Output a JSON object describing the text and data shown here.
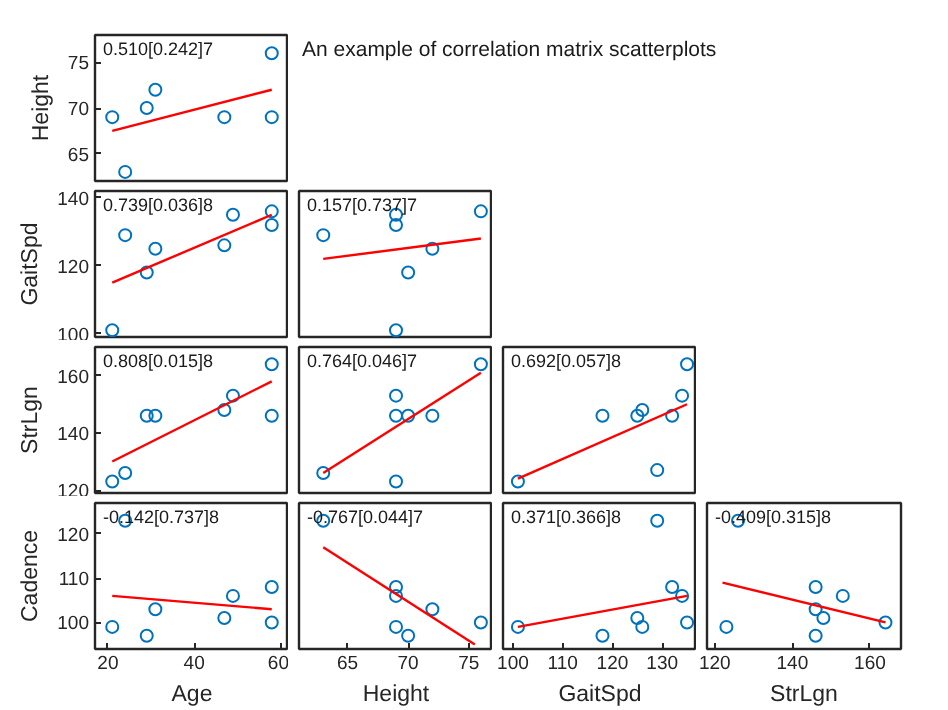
{
  "chart_data": [
    {
      "type": "scatter",
      "ylabel": "Height",
      "xlim": [
        17,
        62
      ],
      "ylim": [
        62,
        78
      ],
      "xticks": [
        20,
        40,
        60
      ],
      "yticks": [
        65,
        70,
        75
      ],
      "tick_labels": "y",
      "grid": false,
      "annotations": [
        "0.510[0.242]7",
        "An example of correlation matrix scatterplots"
      ],
      "series": [
        {
          "marker": "circle",
          "color": "#0072bd",
          "x": [
            21,
            24,
            29,
            31,
            47,
            58,
            58
          ],
          "values": [
            69,
            63,
            70,
            72,
            69,
            76,
            69
          ]
        },
        {
          "type": "line",
          "marker": "none",
          "color": "#ff0000",
          "x": [
            21,
            58
          ],
          "values": [
            67.5,
            72
          ]
        }
      ]
    },
    {
      "type": "scatter",
      "ylabel": "GaitSpd",
      "xlim": [
        17,
        62
      ],
      "ylim": [
        99,
        142
      ],
      "xticks": [
        20,
        40,
        60
      ],
      "yticks": [
        100,
        120,
        140
      ],
      "tick_labels": "y",
      "grid": false,
      "annotations": [
        "0.739[0.036]8"
      ],
      "series": [
        {
          "marker": "circle",
          "color": "#0072bd",
          "x": [
            21,
            24,
            29,
            31,
            47,
            49,
            58,
            58
          ],
          "values": [
            101,
            129,
            118,
            125,
            126,
            135,
            136,
            132
          ]
        },
        {
          "type": "line",
          "marker": "none",
          "color": "#ff0000",
          "x": [
            21,
            58
          ],
          "values": [
            115,
            135
          ]
        }
      ]
    },
    {
      "type": "scatter",
      "xlim": [
        61,
        77
      ],
      "ylim": [
        99,
        142
      ],
      "xticks": [
        65,
        70,
        75
      ],
      "yticks": [
        100,
        120,
        140
      ],
      "tick_labels": false,
      "grid": false,
      "annotations": [
        "0.157[0.737]7"
      ],
      "series": [
        {
          "marker": "circle",
          "color": "#0072bd",
          "x": [
            63,
            69,
            69,
            69,
            70,
            72,
            76
          ],
          "values": [
            129,
            135,
            132,
            101,
            118,
            125,
            136
          ]
        },
        {
          "type": "line",
          "marker": "none",
          "color": "#ff0000",
          "x": [
            63,
            76
          ],
          "values": [
            122,
            128
          ]
        }
      ]
    },
    {
      "type": "scatter",
      "ylabel": "StrLgn",
      "xlim": [
        17,
        62
      ],
      "ylim": [
        119,
        170
      ],
      "xticks": [
        20,
        40,
        60
      ],
      "yticks": [
        120,
        140,
        160
      ],
      "tick_labels": "y",
      "grid": false,
      "annotations": [
        "0.808[0.015]8"
      ],
      "series": [
        {
          "marker": "circle",
          "color": "#0072bd",
          "x": [
            21,
            24,
            29,
            31,
            47,
            49,
            58,
            58
          ],
          "values": [
            123,
            126,
            146,
            146,
            148,
            153,
            164,
            146
          ]
        },
        {
          "type": "line",
          "marker": "none",
          "color": "#ff0000",
          "x": [
            21,
            58
          ],
          "values": [
            130,
            158
          ]
        }
      ]
    },
    {
      "type": "scatter",
      "xlim": [
        61,
        77
      ],
      "ylim": [
        119,
        170
      ],
      "xticks": [
        65,
        70,
        75
      ],
      "yticks": [
        120,
        140,
        160
      ],
      "tick_labels": false,
      "grid": false,
      "annotations": [
        "0.764[0.046]7"
      ],
      "series": [
        {
          "marker": "circle",
          "color": "#0072bd",
          "x": [
            63,
            69,
            69,
            69,
            70,
            72,
            76
          ],
          "values": [
            126,
            153,
            146,
            123,
            146,
            146,
            164
          ]
        },
        {
          "type": "line",
          "marker": "none",
          "color": "#ff0000",
          "x": [
            63,
            76
          ],
          "values": [
            126,
            161
          ]
        }
      ]
    },
    {
      "type": "scatter",
      "xlim": [
        98,
        137
      ],
      "ylim": [
        119,
        170
      ],
      "xticks": [
        100,
        110,
        120,
        130
      ],
      "yticks": [
        120,
        140,
        160
      ],
      "tick_labels": false,
      "grid": false,
      "annotations": [
        "0.692[0.057]8"
      ],
      "series": [
        {
          "marker": "circle",
          "color": "#0072bd",
          "x": [
            101,
            118,
            125,
            126,
            129,
            132,
            134,
            135
          ],
          "values": [
            123,
            146,
            146,
            148,
            127,
            146,
            153,
            164
          ]
        },
        {
          "type": "line",
          "marker": "none",
          "color": "#ff0000",
          "x": [
            101,
            135
          ],
          "values": [
            124,
            150
          ]
        }
      ]
    },
    {
      "type": "scatter",
      "xlabel": "Age",
      "ylabel": "Cadence",
      "xlim": [
        17,
        62
      ],
      "ylim": [
        94,
        127
      ],
      "xticks": [
        20,
        40,
        60
      ],
      "yticks": [
        100,
        110,
        120
      ],
      "grid": false,
      "annotations": [
        "-0.142[0.737]8"
      ],
      "series": [
        {
          "marker": "circle",
          "color": "#0072bd",
          "x": [
            21,
            24,
            29,
            31,
            47,
            49,
            58,
            58
          ],
          "values": [
            99,
            123,
            97,
            103,
            101,
            106,
            108,
            100
          ]
        },
        {
          "type": "line",
          "marker": "none",
          "color": "#ff0000",
          "x": [
            21,
            58
          ],
          "values": [
            106,
            103
          ]
        }
      ]
    },
    {
      "type": "scatter",
      "xlabel": "Height",
      "xlim": [
        61,
        77
      ],
      "ylim": [
        94,
        127
      ],
      "xticks": [
        65,
        70,
        75
      ],
      "yticks": [
        100,
        110,
        120
      ],
      "tick_labels": "x",
      "grid": false,
      "annotations": [
        "-0.767[0.044]7"
      ],
      "series": [
        {
          "marker": "circle",
          "color": "#0072bd",
          "x": [
            63,
            69,
            69,
            69,
            70,
            72,
            76
          ],
          "values": [
            123,
            108,
            106,
            99,
            97,
            103,
            100
          ]
        },
        {
          "type": "line",
          "marker": "none",
          "color": "#ff0000",
          "x": [
            63,
            75.5
          ],
          "values": [
            117,
            95
          ]
        }
      ]
    },
    {
      "type": "scatter",
      "xlabel": "GaitSpd",
      "xlim": [
        98,
        137
      ],
      "ylim": [
        94,
        127
      ],
      "xticks": [
        100,
        110,
        120,
        130
      ],
      "yticks": [
        100,
        110,
        120
      ],
      "tick_labels": "x",
      "grid": false,
      "annotations": [
        "0.371[0.366]8"
      ],
      "series": [
        {
          "marker": "circle",
          "color": "#0072bd",
          "x": [
            101,
            118,
            125,
            126,
            129,
            132,
            134,
            135
          ],
          "values": [
            99,
            97,
            101,
            99,
            123,
            108,
            106,
            100
          ]
        },
        {
          "type": "line",
          "marker": "none",
          "color": "#ff0000",
          "x": [
            101,
            135
          ],
          "values": [
            99,
            106
          ]
        }
      ]
    },
    {
      "type": "scatter",
      "xlabel": "StrLgn",
      "xlim": [
        118,
        168
      ],
      "ylim": [
        94,
        127
      ],
      "xticks": [
        120,
        140,
        160
      ],
      "yticks": [
        100,
        110,
        120
      ],
      "tick_labels": "x",
      "grid": false,
      "annotations": [
        "-0.409[0.315]8"
      ],
      "series": [
        {
          "marker": "circle",
          "color": "#0072bd",
          "x": [
            123,
            126,
            146,
            146,
            146,
            148,
            153,
            164
          ],
          "values": [
            99,
            123,
            108,
            103,
            97,
            101,
            106,
            100
          ]
        },
        {
          "type": "line",
          "marker": "none",
          "color": "#ff0000",
          "x": [
            122,
            164
          ],
          "values": [
            109,
            100
          ]
        }
      ]
    }
  ]
}
